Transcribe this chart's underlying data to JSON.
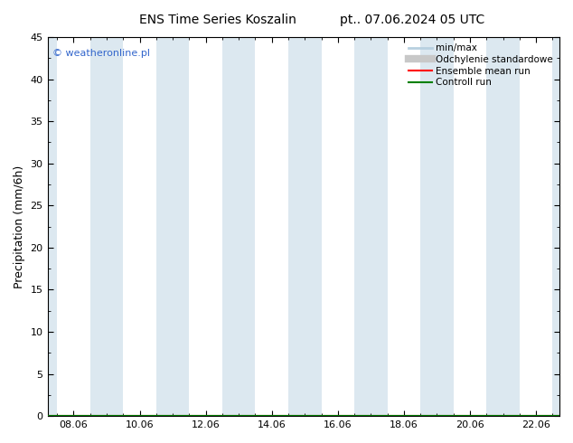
{
  "title": "ENS Time Series Koszalin",
  "title2": "pt.. 07.06.2024 05 UTC",
  "ylabel": "Precipitation (mm/6h)",
  "ylim": [
    0,
    45
  ],
  "yticks": [
    0,
    5,
    10,
    15,
    20,
    25,
    30,
    35,
    40,
    45
  ],
  "xlim": [
    7.208,
    22.708
  ],
  "xtick_positions": [
    8,
    10,
    12,
    14,
    16,
    18,
    20,
    22
  ],
  "xtick_labels": [
    "08.06",
    "10.06",
    "12.06",
    "14.06",
    "16.06",
    "18.06",
    "20.06",
    "22.06"
  ],
  "blue_bands": [
    [
      7.208,
      7.5
    ],
    [
      8.5,
      9.5
    ],
    [
      10.5,
      11.5
    ],
    [
      12.5,
      13.5
    ],
    [
      14.5,
      15.5
    ],
    [
      16.5,
      17.5
    ],
    [
      18.5,
      19.5
    ],
    [
      20.5,
      21.5
    ],
    [
      22.5,
      22.708
    ]
  ],
  "band_color": "#dce8f0",
  "bg_color": "#ffffff",
  "watermark": "© weatheronline.pl",
  "watermark_color": "#3366cc",
  "legend_items": [
    {
      "label": "min/max",
      "color": "#b8d0e0",
      "lw": 2,
      "style": "-"
    },
    {
      "label": "Odchylenie standardowe",
      "color": "#c8c8c8",
      "lw": 6,
      "style": "-"
    },
    {
      "label": "Ensemble mean run",
      "color": "#ff0000",
      "lw": 1.5,
      "style": "-"
    },
    {
      "label": "Controll run",
      "color": "#008000",
      "lw": 1.5,
      "style": "-"
    }
  ],
  "title_fontsize": 10,
  "axis_fontsize": 9,
  "tick_fontsize": 8,
  "legend_fontsize": 7.5
}
